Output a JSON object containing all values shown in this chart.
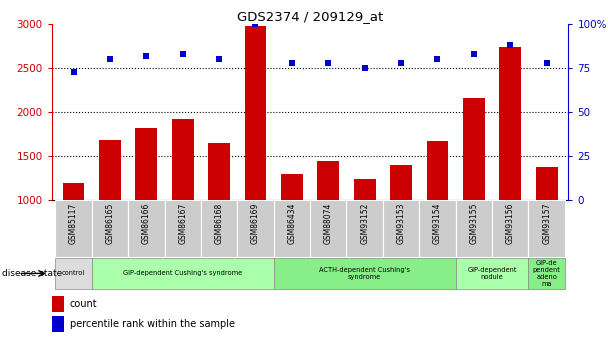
{
  "title": "GDS2374 / 209129_at",
  "samples": [
    "GSM85117",
    "GSM86165",
    "GSM86166",
    "GSM86167",
    "GSM86168",
    "GSM86169",
    "GSM86434",
    "GSM88074",
    "GSM93152",
    "GSM93153",
    "GSM93154",
    "GSM93155",
    "GSM93156",
    "GSM93157"
  ],
  "counts": [
    1190,
    1680,
    1820,
    1920,
    1650,
    2980,
    1300,
    1440,
    1240,
    1400,
    1670,
    2160,
    2740,
    1380
  ],
  "percentiles": [
    73,
    80,
    82,
    83,
    80,
    100,
    78,
    78,
    75,
    78,
    80,
    83,
    88,
    78
  ],
  "bar_color": "#cc0000",
  "dot_color": "#0000cc",
  "ylim_left": [
    1000,
    3000
  ],
  "ylim_right": [
    0,
    100
  ],
  "yticks_left": [
    1000,
    1500,
    2000,
    2500,
    3000
  ],
  "yticks_right": [
    0,
    25,
    50,
    75,
    100
  ],
  "yticklabels_right": [
    "0",
    "25",
    "50",
    "75",
    "100%"
  ],
  "grid_values": [
    1500,
    2000,
    2500
  ],
  "disease_groups": [
    {
      "label": "control",
      "start": 0,
      "end": 1,
      "color": "#dddddd"
    },
    {
      "label": "GIP-dependent Cushing's syndrome",
      "start": 1,
      "end": 6,
      "color": "#aaffaa"
    },
    {
      "label": "ACTH-dependent Cushing's\nsyndrome",
      "start": 6,
      "end": 11,
      "color": "#88ee88"
    },
    {
      "label": "GIP-dependent\nnodule",
      "start": 11,
      "end": 13,
      "color": "#aaffaa"
    },
    {
      "label": "GIP-de\npendent\nadeno\nma",
      "start": 13,
      "end": 14,
      "color": "#88ee88"
    }
  ],
  "disease_state_label": "disease state",
  "legend_count_label": "count",
  "legend_percentile_label": "percentile rank within the sample",
  "tick_label_color_left": "#cc0000",
  "tick_label_color_right": "#0000cc",
  "sample_bg_color": "#cccccc",
  "bar_width": 0.6
}
